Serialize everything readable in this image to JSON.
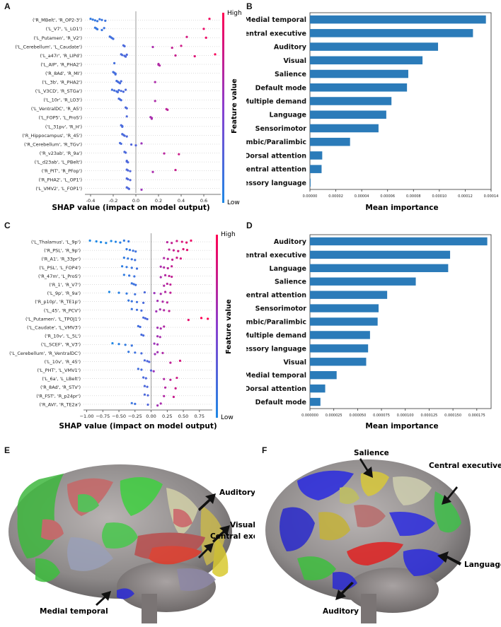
{
  "figure": {
    "panel_labels": {
      "A": "A",
      "B": "B",
      "C": "C",
      "D": "D",
      "E": "E",
      "F": "F"
    },
    "colors": {
      "low": "#1e88e5",
      "high": "#ff0052",
      "bar": "#2b7bb9"
    }
  },
  "chart_data": [
    {
      "id": "A",
      "type": "scatter",
      "xlabel": "SHAP value (impact on model output)",
      "colorbar": {
        "label": "Feature value",
        "high": "High",
        "low": "Low"
      },
      "xlim": [
        -0.45,
        0.75
      ],
      "ticks": [
        "-0.4",
        "-0.2",
        "0.0",
        "0.2",
        "0.4",
        "0.6"
      ],
      "tick_values": [
        -0.4,
        -0.2,
        0.0,
        0.2,
        0.4,
        0.6
      ],
      "features": [
        {
          "name": "('R_MBelt', 'R_OP2-3')",
          "points": [
            -0.4,
            -0.38,
            -0.36,
            -0.34,
            -0.32,
            -0.3,
            -0.27,
            0.65
          ]
        },
        {
          "name": "('L_V7', 'L_LO1')",
          "points": [
            -0.36,
            -0.35,
            -0.34,
            -0.3,
            -0.28,
            0.6
          ]
        },
        {
          "name": "('L_Putamen', 'R_V2')",
          "points": [
            -0.23,
            -0.22,
            -0.21,
            -0.2,
            0.45,
            0.62
          ]
        },
        {
          "name": "('L_Cerebellum', 'L_Caudate')",
          "points": [
            -0.11,
            -0.1,
            0.15,
            0.32,
            0.4
          ]
        },
        {
          "name": "('L_a47r', 'R_LIPd')",
          "points": [
            -0.13,
            -0.12,
            -0.1,
            -0.09,
            -0.08,
            0.35,
            0.52,
            0.7
          ]
        },
        {
          "name": "('L_AIP', 'R_PHA2')",
          "points": [
            -0.19,
            0.2,
            0.2,
            0.21
          ]
        },
        {
          "name": "('R_8Ad', 'R_MI')",
          "points": [
            -0.2,
            -0.19,
            -0.18,
            -0.18
          ]
        },
        {
          "name": "('L_3b', 'R_PHA2')",
          "points": [
            -0.17,
            -0.16,
            -0.15,
            -0.14,
            -0.13,
            0.17
          ]
        },
        {
          "name": "('L_V3CD', 'R_STGa')",
          "points": [
            -0.21,
            -0.19,
            -0.17,
            -0.16,
            -0.15,
            -0.13,
            -0.11,
            -0.09
          ]
        },
        {
          "name": "('L_10r', 'R_LO3')",
          "points": [
            -0.15,
            -0.14,
            -0.13,
            0.17
          ]
        },
        {
          "name": "('L_VentralDC', 'R_A5')",
          "points": [
            -0.09,
            -0.08,
            0.27,
            0.28
          ]
        },
        {
          "name": "('L_FOP5', 'L_ProS')",
          "points": [
            -0.08,
            0.13,
            0.14,
            0.14
          ]
        },
        {
          "name": "('L_31pv', 'R_H')",
          "points": [
            -0.13,
            -0.12,
            -0.12
          ]
        },
        {
          "name": "('R_Hippocampus', 'R_45')",
          "points": [
            -0.12,
            -0.11,
            -0.1,
            -0.08
          ]
        },
        {
          "name": "('R_Cerebellum', 'R_TGv')",
          "points": [
            -0.14,
            -0.13,
            -0.04,
            0.0,
            0.05
          ]
        },
        {
          "name": "('R_v23ab', 'R_9a')",
          "points": [
            -0.1,
            -0.09,
            0.25,
            0.38
          ]
        },
        {
          "name": "('L_d23ab', 'L_PBelt')",
          "points": [
            -0.08,
            -0.08,
            -0.07
          ]
        },
        {
          "name": "('R_PIT', 'R_PFop')",
          "points": [
            -0.08,
            -0.07,
            -0.05,
            0.15,
            0.35
          ]
        },
        {
          "name": "('R_PHA2', 'L_OP1')",
          "points": [
            -0.08,
            -0.07,
            -0.05
          ]
        },
        {
          "name": "('L_VMV2', 'L_FOP1')",
          "points": [
            -0.08,
            -0.07,
            -0.06,
            0.05
          ]
        }
      ]
    },
    {
      "id": "B",
      "type": "bar",
      "orientation": "horizontal",
      "xlabel": "Mean importance",
      "xlim": [
        0,
        0.00014
      ],
      "ticks": [
        "0.00000",
        "0.00002",
        "0.00004",
        "0.00006",
        "0.00008",
        "0.00010",
        "0.00012",
        "0.00014"
      ],
      "tick_values": [
        0,
        2e-05,
        4e-05,
        6e-05,
        8e-05,
        0.0001,
        0.00012,
        0.00014
      ],
      "categories": [
        "Medial temporal",
        "Central executive",
        "Auditory",
        "Visual",
        "Salience",
        "Default mode",
        "Multiple demand",
        "Language",
        "Sensorimotor",
        "Limbic/Paralimbic",
        "Dorsal attention",
        "Ventral attention",
        "Accessory language"
      ],
      "values": [
        0.000136,
        0.000126,
        9.9e-05,
        8.7e-05,
        7.6e-05,
        7.5e-05,
        6.3e-05,
        5.9e-05,
        5.3e-05,
        3.1e-05,
        9.5e-06,
        9e-06,
        5e-07
      ]
    },
    {
      "id": "C",
      "type": "scatter",
      "xlabel": "SHAP value (impact on model output)",
      "colorbar": {
        "label": "Feature value",
        "high": "High",
        "low": "Low"
      },
      "xlim": [
        -1.05,
        0.95
      ],
      "ticks": [
        "−1.00",
        "−0.75",
        "−0.50",
        "−0.25",
        "0.00",
        "0.25",
        "0.50",
        "0.75"
      ],
      "tick_values": [
        -1.0,
        -0.75,
        -0.5,
        -0.25,
        0.0,
        0.25,
        0.5,
        0.75
      ],
      "features": [
        {
          "name": "('L_Thalamus', 'L_9p')",
          "points": [
            -0.95,
            -0.85,
            -0.78,
            -0.7,
            -0.62,
            -0.55,
            -0.48,
            -0.42,
            -0.35,
            0.25,
            0.32,
            0.4,
            0.48,
            0.55,
            0.62
          ]
        },
        {
          "name": "('R_PSL', 'R_9p')",
          "points": [
            -0.38,
            -0.33,
            -0.28,
            -0.24,
            0.28,
            0.35,
            0.42,
            0.5,
            0.56
          ]
        },
        {
          "name": "('R_A1', 'R_33pr')",
          "points": [
            -0.42,
            -0.36,
            -0.3,
            -0.25,
            0.2,
            0.26,
            0.33,
            0.4,
            0.46
          ]
        },
        {
          "name": "('L_PSL', 'L_FOP4')",
          "points": [
            -0.45,
            -0.38,
            -0.3,
            -0.22,
            0.15,
            0.2,
            0.26,
            0.32
          ]
        },
        {
          "name": "('R_47m', 'L_ProS')",
          "points": [
            -0.42,
            -0.34,
            -0.26,
            0.15,
            0.22,
            0.28,
            0.32
          ]
        },
        {
          "name": "('R_1', 'R_V7')",
          "points": [
            -0.3,
            -0.27,
            -0.24,
            0.2,
            0.25,
            0.3
          ]
        },
        {
          "name": "('L_9p', 'R_9a')",
          "points": [
            -0.65,
            -0.5,
            -0.38,
            -0.25,
            -0.1,
            0.05,
            0.15,
            0.22,
            0.3
          ]
        },
        {
          "name": "('R_p10p', 'R_TE1p')",
          "points": [
            -0.35,
            -0.3,
            -0.22,
            -0.12,
            0.1,
            0.18,
            0.25
          ]
        },
        {
          "name": "('L_45', 'R_PCV')",
          "points": [
            -0.3,
            -0.22,
            -0.15,
            0.08,
            0.14,
            0.2,
            0.28
          ]
        },
        {
          "name": "('L_Putamen', 'L_TPOJ1')",
          "points": [
            -0.12,
            -0.09,
            -0.06,
            0.58,
            0.78,
            0.88
          ]
        },
        {
          "name": "('L_Caudate', 'L_VMV3')",
          "points": [
            -0.2,
            -0.17,
            0.1,
            0.15,
            0.2
          ]
        },
        {
          "name": "('R_10v', 'L_5L')",
          "points": [
            -0.15,
            -0.12,
            0.1,
            0.14
          ]
        },
        {
          "name": "('L_SCEF', 'R_V3')",
          "points": [
            -0.6,
            -0.5,
            -0.4,
            -0.3,
            0.05,
            0.1
          ]
        },
        {
          "name": "('L_Cerebellum', 'R_VentralDC')",
          "points": [
            -0.35,
            -0.25,
            -0.15,
            0.06,
            0.1,
            0.18
          ]
        },
        {
          "name": "('L_10v', 'R_45')",
          "points": [
            -0.1,
            -0.06,
            -0.03,
            0.3,
            0.45
          ]
        },
        {
          "name": "('L_PHT', 'L_VMV1')",
          "points": [
            -0.2,
            -0.15,
            0.0,
            0.04
          ]
        },
        {
          "name": "('L_6a', 'L_LBelt')",
          "points": [
            -0.12,
            -0.08,
            0.2,
            0.3,
            0.4
          ]
        },
        {
          "name": "('R_8Ad', 'R_STV')",
          "points": [
            -0.1,
            -0.06,
            0.22,
            0.38
          ]
        },
        {
          "name": "('R_FST', 'R_p24pr')",
          "points": [
            -0.1,
            -0.05,
            0.2,
            0.35
          ]
        },
        {
          "name": "('R_AVI', 'R_TE2a')",
          "points": [
            -0.3,
            -0.25,
            -0.05,
            0.1,
            0.15
          ]
        }
      ]
    },
    {
      "id": "D",
      "type": "bar",
      "orientation": "horizontal",
      "xlabel": "Mean importance",
      "xlim": [
        0,
        0.00019
      ],
      "ticks": [
        "0.000000",
        "0.000025",
        "0.000050",
        "0.000075",
        "0.000100",
        "0.000125",
        "0.000150",
        "0.000175"
      ],
      "tick_values": [
        0,
        2.5e-05,
        5e-05,
        7.5e-05,
        0.0001,
        0.000125,
        0.00015,
        0.000175
      ],
      "categories": [
        "Auditory",
        "Central executive",
        "Language",
        "Salience",
        "Ventral attention",
        "Sensorimotor",
        "Limbic/Paralimbic",
        "Multiple demand",
        "Accessory language",
        "Visual",
        "Medial temporal",
        "Dorsal attention",
        "Default mode"
      ],
      "values": [
        0.000186,
        0.000147,
        0.000145,
        0.000111,
        8.1e-05,
        7.2e-05,
        7.1e-05,
        6.3e-05,
        6.1e-05,
        5.9e-05,
        2.8e-05,
        1.6e-05,
        1.1e-05
      ]
    }
  ],
  "brain_e": {
    "labels": {
      "central_executive": "Central executive",
      "auditory": "Auditory",
      "visual": "Visual",
      "medial_temporal": "Medial temporal"
    }
  },
  "brain_f": {
    "labels": {
      "salience": "Salience",
      "central_executive": "Central executive",
      "language": "Language",
      "auditory": "Auditory"
    }
  }
}
